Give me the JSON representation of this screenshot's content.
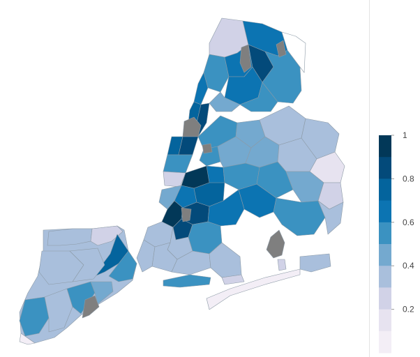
{
  "map": {
    "title": "",
    "colorscale": [
      {
        "value": 0.0,
        "color": "#fff7fb"
      },
      {
        "value": 0.1,
        "color": "#f3eef6"
      },
      {
        "value": 0.2,
        "color": "#e7e3f0"
      },
      {
        "value": 0.3,
        "color": "#d1d2e7"
      },
      {
        "value": 0.4,
        "color": "#a9bfdc"
      },
      {
        "value": 0.5,
        "color": "#74a9cf"
      },
      {
        "value": 0.6,
        "color": "#3b92c1"
      },
      {
        "value": 0.7,
        "color": "#0c74b2"
      },
      {
        "value": 0.8,
        "color": "#04649d"
      },
      {
        "value": 0.9,
        "color": "#034a7a"
      },
      {
        "value": 1.0,
        "color": "#023858"
      }
    ],
    "missing_color": "#7f7f7f",
    "border_color": "#8c9aa6"
  },
  "legend": {
    "range": [
      0,
      1
    ],
    "ticks": [
      {
        "value": 1,
        "label": "1"
      },
      {
        "value": 0.8,
        "label": "0.8"
      },
      {
        "value": 0.6,
        "label": "0.6"
      },
      {
        "value": 0.4,
        "label": "0.4"
      },
      {
        "value": 0.2,
        "label": "0.2"
      }
    ]
  }
}
